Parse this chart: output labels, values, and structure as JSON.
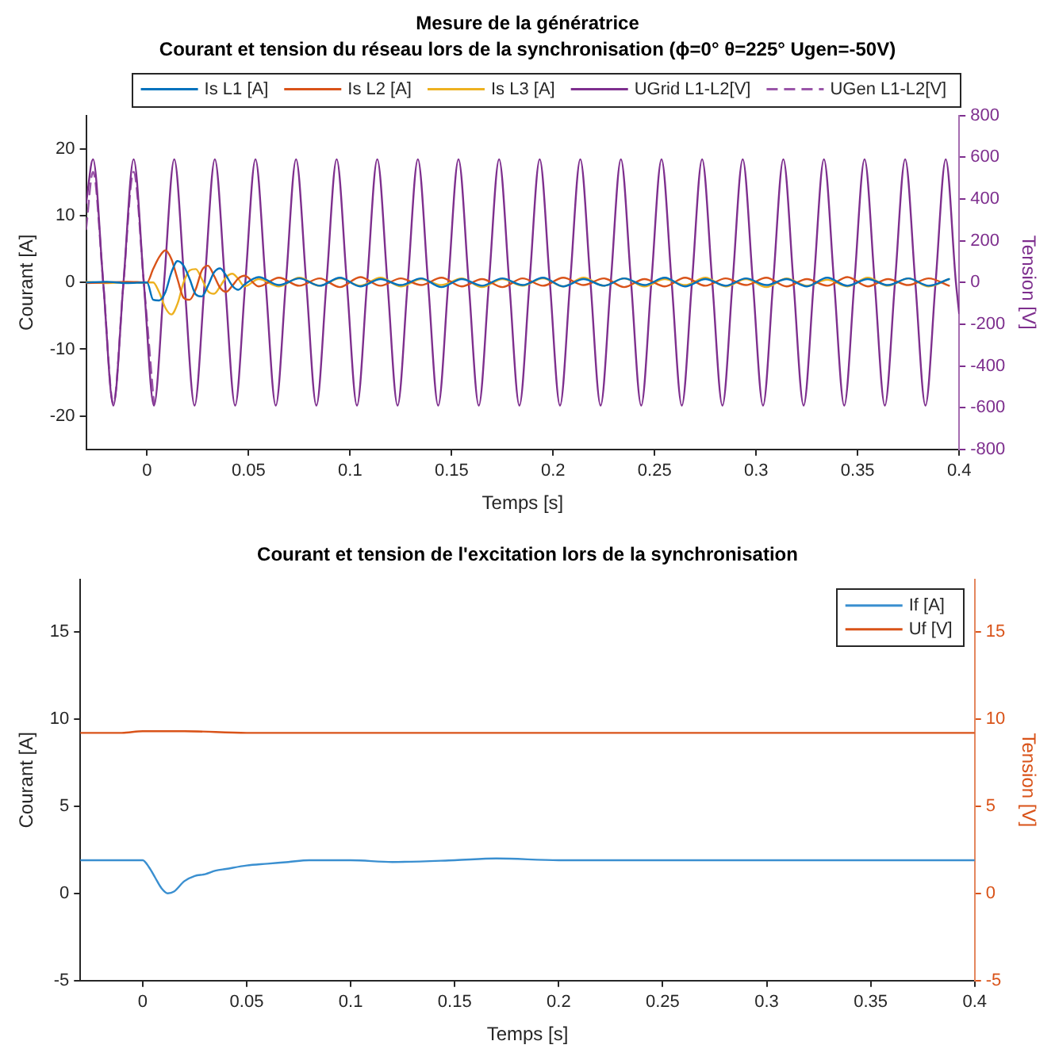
{
  "chart_data": [
    {
      "type": "line",
      "title": "Mesure de la génératrice",
      "subtitle": "Courant et tension du réseau lors de la synchronisation (ϕ=0° θ=225° Ugen=-50V)",
      "xlabel": "Temps [s]",
      "ylabel": "Courant [A]",
      "y2label": "Tension [V]",
      "xlim": [
        -0.03,
        0.4
      ],
      "xticks": [
        0,
        0.05,
        0.1,
        0.15,
        0.2,
        0.25,
        0.3,
        0.35,
        0.4
      ],
      "ylim": [
        -25,
        25
      ],
      "yticks": [
        -20,
        -10,
        0,
        10,
        20
      ],
      "y2lim": [
        -800,
        800
      ],
      "y2ticks": [
        -800,
        -600,
        -400,
        -200,
        0,
        200,
        400,
        600,
        800
      ],
      "legend": "top",
      "marker": "none",
      "series": [
        {
          "name": "Is L1 [A]",
          "color": "#0072bd",
          "x": [
            -0.03,
            -0.02,
            -0.01,
            0,
            0.003,
            0.006,
            0.009,
            0.012,
            0.015,
            0.018,
            0.021,
            0.024,
            0.027,
            0.03,
            0.033,
            0.036,
            0.039,
            0.042,
            0.045,
            0.048,
            0.055,
            0.065,
            0.075,
            0.085,
            0.095,
            0.105,
            0.115,
            0.125,
            0.135,
            0.145,
            0.155,
            0.165,
            0.175,
            0.185,
            0.195,
            0.205,
            0.215,
            0.225,
            0.235,
            0.245,
            0.255,
            0.265,
            0.275,
            0.285,
            0.295,
            0.305,
            0.315,
            0.325,
            0.335,
            0.345,
            0.355,
            0.365,
            0.375,
            0.385,
            0.395
          ],
          "values": [
            0,
            0.1,
            -0.1,
            0,
            -2.6,
            -2.7,
            -1.5,
            1.5,
            3.2,
            2.5,
            0.5,
            -1.8,
            -2.1,
            -0.5,
            1.5,
            2.1,
            1,
            -0.5,
            -1.1,
            -0.3,
            0.8,
            -0.4,
            0.6,
            -0.5,
            0.7,
            -0.6,
            0.5,
            -0.4,
            0.6,
            -0.7,
            0.5,
            -0.5,
            0.6,
            -0.4,
            0.7,
            -0.6,
            0.5,
            -0.5,
            0.6,
            -0.4,
            0.7,
            -0.6,
            0.5,
            -0.5,
            0.6,
            -0.4,
            0.5,
            -0.6,
            0.7,
            -0.5,
            0.5,
            -0.4,
            0.6,
            -0.5,
            0.5
          ]
        },
        {
          "name": "Is L2 [A]",
          "color": "#d95319",
          "x": [
            -0.03,
            -0.02,
            -0.01,
            0,
            0.003,
            0.006,
            0.009,
            0.012,
            0.015,
            0.018,
            0.021,
            0.024,
            0.027,
            0.03,
            0.033,
            0.036,
            0.039,
            0.042,
            0.045,
            0.048,
            0.055,
            0.065,
            0.075,
            0.085,
            0.095,
            0.105,
            0.115,
            0.125,
            0.135,
            0.145,
            0.155,
            0.165,
            0.175,
            0.185,
            0.195,
            0.205,
            0.215,
            0.225,
            0.235,
            0.245,
            0.255,
            0.265,
            0.275,
            0.285,
            0.295,
            0.305,
            0.315,
            0.325,
            0.335,
            0.345,
            0.355,
            0.365,
            0.375,
            0.385,
            0.395
          ],
          "values": [
            -0.1,
            0,
            0.1,
            0,
            2,
            3.8,
            4.8,
            3.5,
            0.5,
            -2.3,
            -2.6,
            -1,
            1.8,
            2.5,
            1,
            -0.8,
            -1.4,
            -0.5,
            0.6,
            1,
            -0.6,
            0.7,
            -0.5,
            0.6,
            -0.7,
            0.8,
            -0.5,
            0.6,
            -0.4,
            0.7,
            -0.6,
            0.5,
            -0.7,
            0.6,
            -0.5,
            0.7,
            -0.4,
            0.6,
            -0.7,
            0.5,
            -0.6,
            0.7,
            -0.5,
            0.6,
            -0.4,
            0.7,
            -0.6,
            0.5,
            -0.5,
            0.8,
            -0.6,
            0.5,
            -0.4,
            0.6,
            -0.5
          ]
        },
        {
          "name": "Is L3 [A]",
          "color": "#edb120",
          "x": [
            -0.03,
            -0.02,
            -0.01,
            0,
            0.003,
            0.006,
            0.009,
            0.012,
            0.015,
            0.018,
            0.021,
            0.024,
            0.027,
            0.03,
            0.033,
            0.036,
            0.039,
            0.042,
            0.045,
            0.048,
            0.055,
            0.065,
            0.075,
            0.085,
            0.095,
            0.105,
            0.115,
            0.125,
            0.135,
            0.145,
            0.155,
            0.165,
            0.175,
            0.185,
            0.195,
            0.205,
            0.215,
            0.225,
            0.235,
            0.245,
            0.255,
            0.265,
            0.275,
            0.285,
            0.295,
            0.305,
            0.315,
            0.325,
            0.335,
            0.345,
            0.355,
            0.365,
            0.375,
            0.385,
            0.395
          ],
          "values": [
            0.1,
            -0.1,
            0,
            0,
            0,
            -1.5,
            -3.8,
            -4.8,
            -3.2,
            0,
            1.8,
            2,
            0.5,
            -1.3,
            -1.7,
            -0.6,
            0.8,
            1.3,
            0.5,
            -0.6,
            0.5,
            -0.6,
            0.7,
            -0.5,
            0.6,
            -0.5,
            0.7,
            -0.6,
            0.5,
            -0.4,
            0.6,
            -0.7,
            0.5,
            -0.5,
            0.6,
            -0.6,
            0.7,
            -0.5,
            0.6,
            -0.6,
            0.5,
            -0.4,
            0.7,
            -0.6,
            0.5,
            -0.7,
            0.6,
            -0.5,
            0.4,
            -0.6,
            0.7,
            -0.5,
            0.6,
            -0.6,
            0.5
          ]
        },
        {
          "name": "UGrid L1-L2[V]",
          "color": "#7e2f8e",
          "axis": "y2",
          "x": [
            -0.03,
            -0.0266,
            -0.0216,
            -0.0166,
            -0.0116,
            -0.0066,
            -0.0016,
            0.0034,
            0.0084,
            0.0134,
            0.0184,
            0.0234,
            0.0284,
            0.0334,
            0.0384,
            0.0434,
            0.0484,
            0.0534,
            0.0584,
            0.0634,
            0.0684,
            0.0734,
            0.0784,
            0.0834,
            0.0884,
            0.0934,
            0.0984,
            0.1034,
            0.1084,
            0.1134,
            0.1184,
            0.1234,
            0.1284,
            0.1334,
            0.1384,
            0.1434,
            0.1484,
            0.1534,
            0.1584,
            0.1634,
            0.1684,
            0.1734,
            0.1784,
            0.1834,
            0.1884,
            0.1934,
            0.1984,
            0.2034,
            0.2084,
            0.2134,
            0.2184,
            0.2234,
            0.2284,
            0.2334,
            0.2384,
            0.2434,
            0.2484,
            0.2534,
            0.2584,
            0.2634,
            0.2684,
            0.2734,
            0.2784,
            0.2834,
            0.2884,
            0.2934,
            0.2984,
            0.3034,
            0.3084,
            0.3134,
            0.3184,
            0.3234,
            0.3284,
            0.3334,
            0.3384,
            0.3434,
            0.3484,
            0.3534,
            0.3584,
            0.3634,
            0.3684,
            0.3734,
            0.3784,
            0.3834,
            0.3884,
            0.3934,
            0.3984,
            0.4
          ],
          "values": [
            380,
            590,
            0,
            -590,
            0,
            590,
            0,
            -590,
            0,
            590,
            0,
            -590,
            0,
            590,
            0,
            -590,
            0,
            590,
            0,
            -590,
            0,
            590,
            0,
            -590,
            0,
            590,
            0,
            -590,
            0,
            590,
            0,
            -590,
            0,
            590,
            0,
            -590,
            0,
            590,
            0,
            -590,
            0,
            590,
            0,
            -590,
            0,
            590,
            0,
            -590,
            0,
            590,
            0,
            -590,
            0,
            590,
            0,
            -590,
            0,
            590,
            0,
            -590,
            0,
            590,
            0,
            -590,
            0,
            590,
            0,
            -590,
            0,
            590,
            0,
            -590,
            0,
            590,
            0,
            -590,
            0,
            590,
            0,
            -590,
            0,
            590,
            0,
            -590,
            0,
            590,
            0,
            -148
          ]
        },
        {
          "name": "UGen L1-L2[V]",
          "color": "#9a55a8",
          "axis": "y2",
          "line_style": "dashed",
          "x": [
            -0.03,
            -0.0266,
            -0.0216,
            -0.0166,
            -0.0116,
            -0.0066,
            -0.0016,
            0.0034
          ],
          "values": [
            255,
            530,
            0,
            -580,
            0,
            530,
            0,
            -580
          ]
        }
      ]
    },
    {
      "type": "line",
      "title": "Courant et tension de l'excitation lors de la synchronisation",
      "xlabel": "Temps [s]",
      "ylabel": "Courant [A]",
      "y2label": "Tension [V]",
      "xlim": [
        -0.03,
        0.4
      ],
      "xticks": [
        0,
        0.05,
        0.1,
        0.15,
        0.2,
        0.25,
        0.3,
        0.35,
        0.4
      ],
      "ylim": [
        -5,
        18
      ],
      "yticks": [
        -5,
        0,
        5,
        10,
        15
      ],
      "y2lim": [
        -5,
        18
      ],
      "y2ticks": [
        -5,
        0,
        5,
        10,
        15
      ],
      "legend": "top right",
      "marker": "none",
      "series": [
        {
          "name": "If [A]",
          "color": "#3a8fd0",
          "x": [
            -0.03,
            -0.01,
            0,
            0.003,
            0.006,
            0.009,
            0.012,
            0.015,
            0.02,
            0.025,
            0.03,
            0.035,
            0.04,
            0.05,
            0.06,
            0.07,
            0.08,
            0.1,
            0.12,
            0.15,
            0.17,
            0.2,
            0.25,
            0.3,
            0.35,
            0.4
          ],
          "values": [
            1.9,
            1.9,
            1.9,
            1.5,
            0.9,
            0.3,
            0,
            0.1,
            0.7,
            1,
            1.1,
            1.3,
            1.4,
            1.6,
            1.7,
            1.8,
            1.9,
            1.9,
            1.8,
            1.9,
            2,
            1.9,
            1.9,
            1.9,
            1.9,
            1.9
          ]
        },
        {
          "name": "Uf [V]",
          "color": "#d95319",
          "axis": "y2",
          "x": [
            -0.03,
            -0.01,
            0,
            0.02,
            0.05,
            0.4
          ],
          "values": [
            9.2,
            9.2,
            9.3,
            9.3,
            9.2,
            9.2
          ]
        }
      ]
    }
  ]
}
